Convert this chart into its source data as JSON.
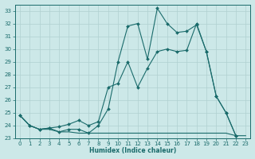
{
  "xlabel": "Humidex (Indice chaleur)",
  "bg_color": "#cce8e8",
  "line_color": "#1a6b6b",
  "grid_color": "#b0d0d0",
  "xlim": [
    -0.5,
    23.5
  ],
  "ylim": [
    23,
    33.5
  ],
  "yticks": [
    23,
    24,
    25,
    26,
    27,
    28,
    29,
    30,
    31,
    32,
    33
  ],
  "xticks": [
    0,
    1,
    2,
    3,
    4,
    5,
    6,
    7,
    8,
    9,
    10,
    11,
    12,
    13,
    14,
    15,
    16,
    17,
    18,
    19,
    20,
    21,
    22,
    23
  ],
  "line1_x": [
    0,
    1,
    2,
    3,
    4,
    5,
    6,
    7,
    8,
    9,
    10,
    11,
    12,
    13,
    14,
    15,
    16,
    17,
    18,
    19,
    20,
    21,
    22
  ],
  "line1_y": [
    24.8,
    24.0,
    23.7,
    23.8,
    23.5,
    23.7,
    23.7,
    23.4,
    24.0,
    25.3,
    29.0,
    31.8,
    32.0,
    29.2,
    33.2,
    32.0,
    31.3,
    31.4,
    31.9,
    29.8,
    26.3,
    25.0,
    23.2
  ],
  "line2_x": [
    0,
    1,
    2,
    3,
    4,
    5,
    6,
    7,
    8,
    9,
    10,
    11,
    12,
    13,
    14,
    15,
    16,
    17,
    18,
    19,
    20,
    21,
    22
  ],
  "line2_y": [
    24.8,
    24.0,
    23.7,
    23.8,
    23.9,
    24.1,
    24.4,
    24.0,
    24.3,
    27.0,
    27.3,
    29.0,
    27.0,
    28.5,
    29.8,
    30.0,
    29.8,
    29.9,
    32.0,
    29.8,
    26.3,
    25.0,
    23.2
  ],
  "line3_x": [
    0,
    1,
    2,
    3,
    4,
    5,
    6,
    7,
    8,
    9,
    10,
    11,
    12,
    13,
    14,
    15,
    16,
    17,
    18,
    19,
    20,
    21,
    22,
    23
  ],
  "line3_y": [
    24.8,
    24.0,
    23.7,
    23.7,
    23.5,
    23.5,
    23.4,
    23.4,
    23.4,
    23.4,
    23.4,
    23.4,
    23.4,
    23.4,
    23.4,
    23.4,
    23.4,
    23.4,
    23.4,
    23.4,
    23.4,
    23.4,
    23.2,
    23.2
  ]
}
